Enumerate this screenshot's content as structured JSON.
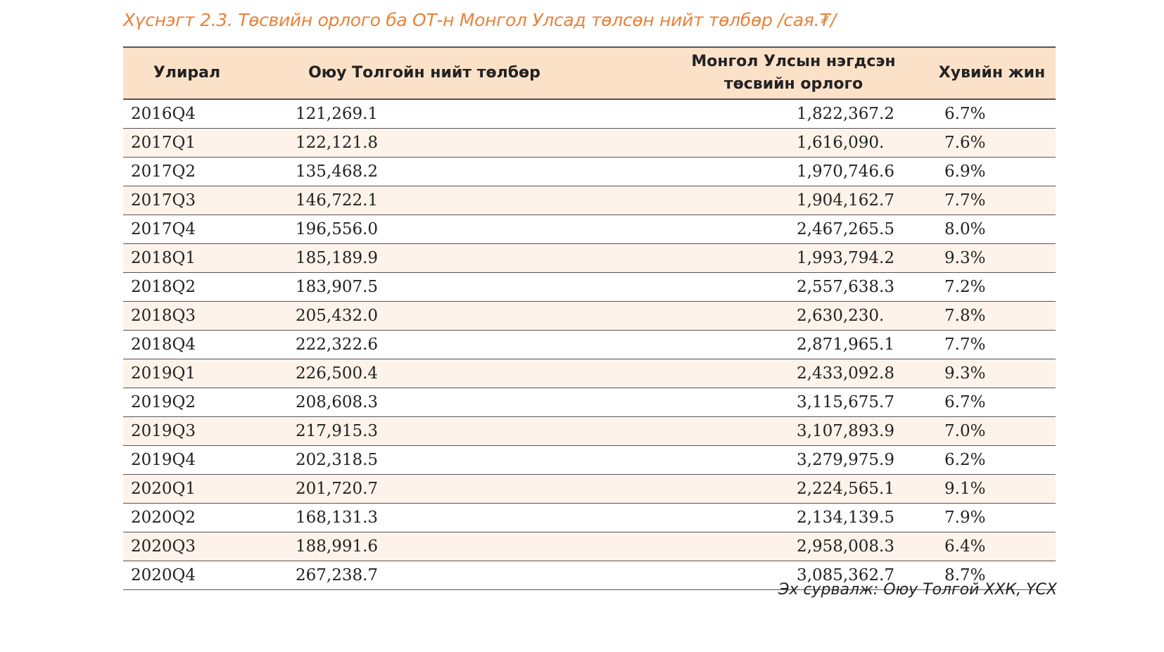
{
  "caption": "Хүснэгт 2.3. Төсвийн орлого ба ОТ-н Монгол Улсад төлсөн нийт төлбөр /сая.₮/",
  "table": {
    "headers": {
      "period": "Улирал",
      "ot_total": "Оюу Толгойн нийт төлбөр",
      "budget_revenue": "Монгол Улсын нэгдсэн төсвийн орлого",
      "share": "Хувийн жин"
    },
    "rows": [
      {
        "period": "2016Q4",
        "ot_total": "121,269.1",
        "budget_revenue": "1,822,367.2",
        "share": "6.7%"
      },
      {
        "period": "2017Q1",
        "ot_total": "122,121.8",
        "budget_revenue": "1,616,090.",
        "share": "7.6%"
      },
      {
        "period": "2017Q2",
        "ot_total": "135,468.2",
        "budget_revenue": "1,970,746.6",
        "share": "6.9%"
      },
      {
        "period": "2017Q3",
        "ot_total": "146,722.1",
        "budget_revenue": "1,904,162.7",
        "share": "7.7%"
      },
      {
        "period": "2017Q4",
        "ot_total": "196,556.0",
        "budget_revenue": "2,467,265.5",
        "share": "8.0%"
      },
      {
        "period": "2018Q1",
        "ot_total": "185,189.9",
        "budget_revenue": "1,993,794.2",
        "share": "9.3%"
      },
      {
        "period": "2018Q2",
        "ot_total": "183,907.5",
        "budget_revenue": "2,557,638.3",
        "share": "7.2%"
      },
      {
        "period": "2018Q3",
        "ot_total": "205,432.0",
        "budget_revenue": "2,630,230.",
        "share": "7.8%"
      },
      {
        "period": "2018Q4",
        "ot_total": "222,322.6",
        "budget_revenue": "2,871,965.1",
        "share": "7.7%"
      },
      {
        "period": "2019Q1",
        "ot_total": "226,500.4",
        "budget_revenue": "2,433,092.8",
        "share": "9.3%"
      },
      {
        "period": "2019Q2",
        "ot_total": "208,608.3",
        "budget_revenue": "3,115,675.7",
        "share": "6.7%"
      },
      {
        "period": "2019Q3",
        "ot_total": "217,915.3",
        "budget_revenue": "3,107,893.9",
        "share": "7.0%"
      },
      {
        "period": "2019Q4",
        "ot_total": "202,318.5",
        "budget_revenue": "3,279,975.9",
        "share": "6.2%"
      },
      {
        "period": "2020Q1",
        "ot_total": "201,720.7",
        "budget_revenue": "2,224,565.1",
        "share": "9.1%"
      },
      {
        "period": "2020Q2",
        "ot_total": "168,131.3",
        "budget_revenue": "2,134,139.5",
        "share": "7.9%"
      },
      {
        "period": "2020Q3",
        "ot_total": "188,991.6",
        "budget_revenue": "2,958,008.3",
        "share": "6.4%"
      },
      {
        "period": "2020Q4",
        "ot_total": "267,238.7",
        "budget_revenue": "3,085,362.7",
        "share": "8.7%"
      }
    ]
  },
  "source": "Эх сурвалж: Оюу Толгой ХХК, ҮСХ",
  "colors": {
    "caption": "#e8823a",
    "header_bg": "#fce1c9",
    "row_shade": "#fef3ea",
    "text": "#222222",
    "rule": "#555555"
  }
}
